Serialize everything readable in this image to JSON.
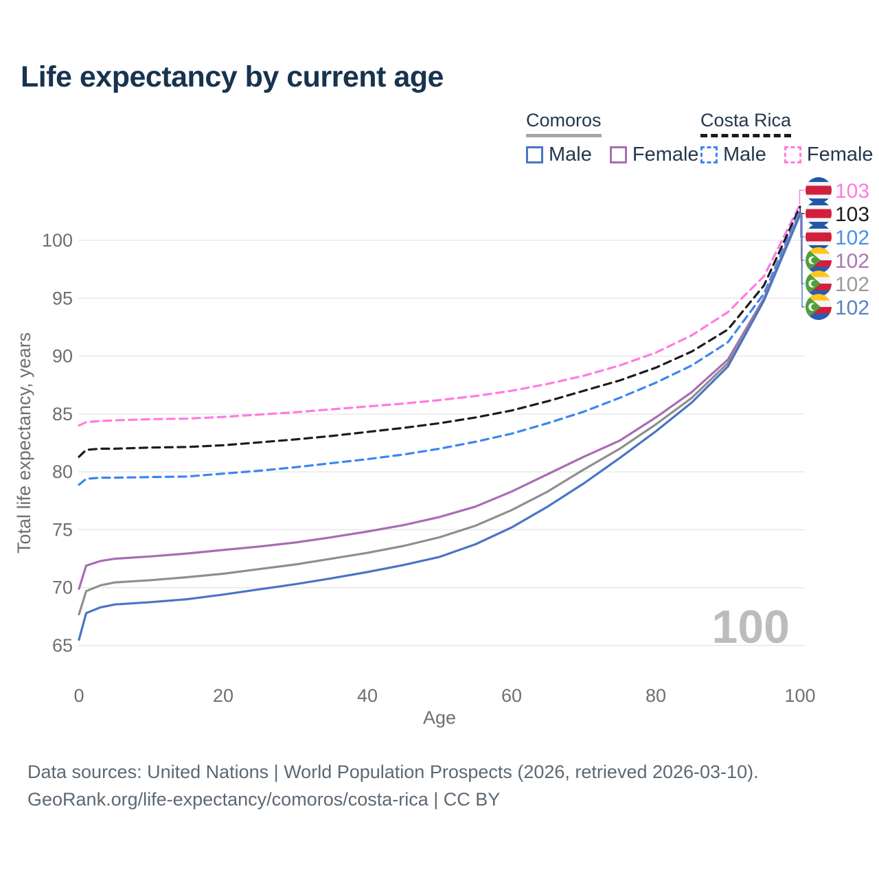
{
  "title": "Life expectancy by current age",
  "watermark": "100",
  "legend": {
    "comoros": {
      "name": "Comoros",
      "male": "Male",
      "female": "Female"
    },
    "costa_rica": {
      "name": "Costa Rica",
      "male": "Male",
      "female": "Female"
    }
  },
  "footer": {
    "line1": "Data sources: United Nations | World Population Prospects (2026, retrieved 2026-03-10).",
    "line2": "GeoRank.org/life-expectancy/comoros/costa-rica | CC BY"
  },
  "colors": {
    "grid": "#e9e9e9",
    "tick_text": "#6f6f6f",
    "watermark": "#bcbcbc",
    "title_text": "#17334f",
    "legend_text": "#24384e",
    "footer_text": "#5c6873",
    "comoros_underline": "#a6a6a6",
    "costa_rica_underline": "#1a1a1a",
    "flag_costa_rica_blue": "#2058a8",
    "flag_red": "#d21f3c",
    "flag_comoros_yellow": "#ffc61e",
    "flag_comoros_blue": "#2b5cb0",
    "flag_comoros_green": "#4da03b"
  },
  "chart_data": {
    "type": "line",
    "title": "Life expectancy by current age",
    "xlabel": "Age",
    "ylabel": "Total life expectancy, years",
    "xlim": [
      0,
      100
    ],
    "ylim": [
      64.5,
      103.5
    ],
    "x_ticks": [
      0,
      20,
      40,
      60,
      80,
      100
    ],
    "y_ticks": [
      65,
      70,
      75,
      80,
      85,
      90,
      95,
      100
    ],
    "grid": "horizontal",
    "legend_position": "top-right",
    "x": [
      0,
      1,
      3,
      5,
      10,
      15,
      20,
      25,
      30,
      35,
      40,
      45,
      50,
      55,
      60,
      65,
      70,
      75,
      80,
      85,
      90,
      95,
      100
    ],
    "series": [
      {
        "id": "costa-rica-female",
        "name": "Costa Rica Female",
        "country": "Costa Rica",
        "sex": "Female",
        "color": "#ff7ae2",
        "dashed": true,
        "flag": "costa-rica",
        "end_label": "103",
        "end_label_color": "#ff7ae2",
        "values": [
          84.0,
          84.3,
          84.4,
          84.45,
          84.55,
          84.6,
          84.75,
          84.95,
          85.15,
          85.4,
          85.65,
          85.9,
          86.2,
          86.55,
          87.0,
          87.6,
          88.3,
          89.2,
          90.3,
          91.8,
          93.8,
          96.9,
          103.1
        ]
      },
      {
        "id": "costa-rica-both",
        "name": "Costa Rica",
        "country": "Costa Rica",
        "sex": "Both",
        "color": "#1c1c1c",
        "dashed": true,
        "flag": "costa-rica",
        "end_label": "103",
        "end_label_color": "#1c1c1c",
        "values": [
          81.3,
          81.9,
          82.0,
          82.0,
          82.1,
          82.15,
          82.3,
          82.55,
          82.8,
          83.1,
          83.45,
          83.8,
          84.2,
          84.7,
          85.3,
          86.1,
          87.0,
          87.9,
          89.0,
          90.4,
          92.3,
          96.1,
          102.9
        ]
      },
      {
        "id": "costa-rica-male",
        "name": "Costa Rica Male",
        "country": "Costa Rica",
        "sex": "Male",
        "color": "#3c86f0",
        "dashed": true,
        "flag": "costa-rica",
        "end_label": "102",
        "end_label_color": "#4a8fe8",
        "values": [
          78.9,
          79.4,
          79.5,
          79.5,
          79.55,
          79.6,
          79.85,
          80.1,
          80.4,
          80.75,
          81.1,
          81.5,
          82.0,
          82.6,
          83.3,
          84.2,
          85.2,
          86.4,
          87.7,
          89.2,
          91.2,
          95.4,
          102.6
        ]
      },
      {
        "id": "comoros-female",
        "name": "Comoros Female",
        "country": "Comoros",
        "sex": "Female",
        "color": "#a96cb3",
        "dashed": false,
        "flag": "comoros",
        "end_label": "102",
        "end_label_color": "#a878b3",
        "values": [
          69.9,
          71.9,
          72.3,
          72.5,
          72.7,
          72.95,
          73.25,
          73.55,
          73.9,
          74.35,
          74.85,
          75.4,
          76.1,
          77.0,
          78.3,
          79.8,
          81.3,
          82.7,
          84.7,
          86.9,
          89.7,
          95.0,
          102.4
        ]
      },
      {
        "id": "comoros-both",
        "name": "Comoros",
        "country": "Comoros",
        "sex": "Both",
        "color": "#8f8f8f",
        "dashed": false,
        "flag": "comoros",
        "end_label": "102",
        "end_label_color": "#9a9a9a",
        "values": [
          67.7,
          69.7,
          70.2,
          70.45,
          70.65,
          70.9,
          71.2,
          71.6,
          72.0,
          72.5,
          73.0,
          73.6,
          74.35,
          75.35,
          76.7,
          78.3,
          80.2,
          82.0,
          84.1,
          86.4,
          89.4,
          94.9,
          102.3
        ]
      },
      {
        "id": "comoros-male",
        "name": "Comoros Male",
        "country": "Comoros",
        "sex": "Male",
        "color": "#4a74c4",
        "dashed": false,
        "flag": "comoros",
        "end_label": "102",
        "end_label_color": "#5b80c4",
        "values": [
          65.5,
          67.8,
          68.3,
          68.55,
          68.75,
          69.0,
          69.4,
          69.85,
          70.3,
          70.8,
          71.35,
          71.95,
          72.65,
          73.75,
          75.2,
          77.0,
          79.0,
          81.2,
          83.5,
          86.0,
          89.1,
          94.8,
          102.2
        ]
      }
    ]
  }
}
